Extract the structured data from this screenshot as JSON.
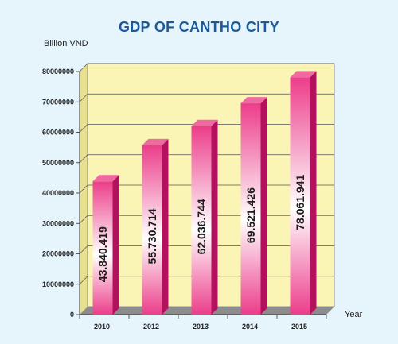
{
  "chart_data": {
    "type": "bar",
    "title": "GDP OF CANTHO CITY",
    "ylabel": "Billion VND",
    "xlabel": "Year",
    "categories": [
      "2010",
      "2012",
      "2013",
      "2014",
      "2015"
    ],
    "values": [
      43840419,
      55730714,
      62036744,
      69521426,
      78061941
    ],
    "value_labels": [
      "43.840.419",
      "55.730.714",
      "62.036.744",
      "69.521.426",
      "78.061.941"
    ],
    "ylim": [
      0,
      80000000
    ],
    "yticks": [
      0,
      10000000,
      20000000,
      30000000,
      40000000,
      50000000,
      60000000,
      70000000,
      80000000
    ],
    "ytick_labels": [
      "0",
      "10000000",
      "20000000",
      "30000000",
      "40000000",
      "50000000",
      "60000000",
      "70000000",
      "80000000"
    ],
    "grid": true,
    "colors": {
      "bar_front": "#ec3d8a",
      "bar_highlight": "#ffffff",
      "bar_side": "#b3105e",
      "bar_top": "#f06aa2",
      "plot_back": "#fbf5b5",
      "plot_side": "#e8e08f",
      "floor": "#8c8c8c",
      "title": "#1a5a9c"
    }
  }
}
